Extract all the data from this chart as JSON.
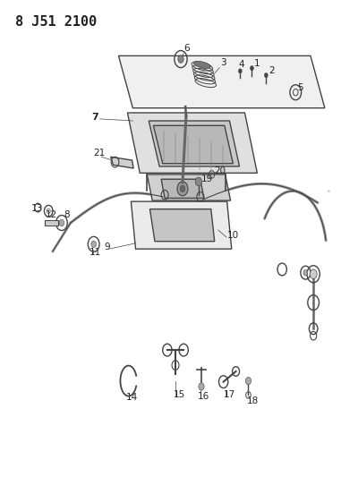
{
  "title": "8 J51 2100",
  "bg_color": "#ffffff",
  "line_color": "#444444",
  "label_color": "#222222",
  "label_fontsize": 7.5,
  "title_fontsize": 11,
  "title_fontweight": "bold"
}
